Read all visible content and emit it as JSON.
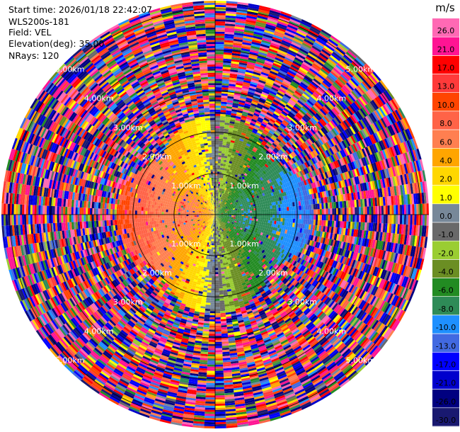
{
  "header": {
    "start_time_label": "Start time: 2026/01/18 22:42:07",
    "instrument": "WLS200s-181",
    "field": "Field: VEL",
    "elevation": "Elevation(deg): 35.00",
    "nrays": "NRays: 120"
  },
  "chart_data": {
    "type": "heatmap",
    "projection": "polar",
    "field": "VEL",
    "units": "m/s",
    "nrays": 120,
    "elevation_deg": 35.0,
    "range_rings_km": [
      1.0,
      2.0,
      3.0,
      4.0,
      5.0
    ],
    "ring_labels": [
      "1.00km",
      "2.00km",
      "3.00km",
      "4.00km",
      "5.00km"
    ],
    "max_range_km": 5.2,
    "colorbar": {
      "unit_label": "m/s",
      "ticks": [
        "26.0",
        "21.0",
        "17.0",
        "13.0",
        "10.0",
        "8.0",
        "6.0",
        "4.0",
        "2.0",
        "1.0",
        "0.0",
        "-1.0",
        "-2.0",
        "-4.0",
        "-6.0",
        "-8.0",
        "-10.0",
        "-13.0",
        "-17.0",
        "-21.0",
        "-26.0",
        "-30.0"
      ],
      "bounds": [
        30,
        26,
        21,
        17,
        13,
        10,
        8,
        6,
        4,
        2,
        1,
        0,
        -1,
        -2,
        -4,
        -6,
        -8,
        -10,
        -13,
        -17,
        -21,
        -26,
        -30
      ],
      "colors": [
        "#ff69b4",
        "#ff1493",
        "#ff0000",
        "#ff3a3a",
        "#ff4500",
        "#ff6347",
        "#ff7f50",
        "#ffa500",
        "#ffd700",
        "#ffff00",
        "#778899",
        "#696969",
        "#9acd32",
        "#6b8e23",
        "#228b22",
        "#2e8b57",
        "#1e90ff",
        "#4169e1",
        "#0000ff",
        "#0000cd",
        "#000080",
        "#191970"
      ]
    },
    "wind_summary": {
      "near_field_west": 6.0,
      "near_field_east": -6.0,
      "noise_beyond_km": 2.2
    }
  }
}
